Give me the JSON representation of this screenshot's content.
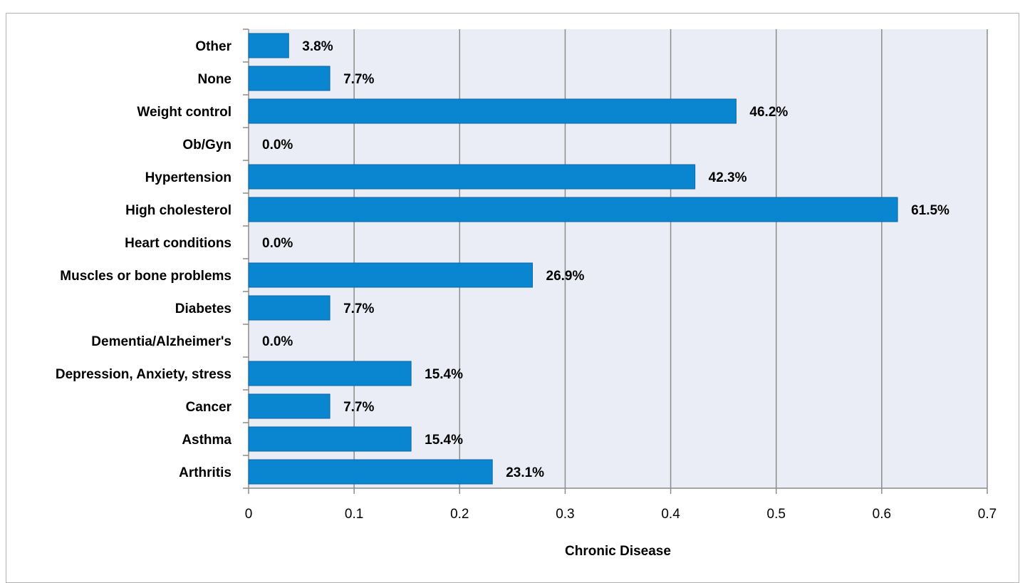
{
  "chart_data": {
    "type": "bar",
    "orientation": "horizontal",
    "categories": [
      "Arthritis",
      "Asthma",
      "Cancer",
      "Depression, Anxiety, stress",
      "Dementia/Alzheimer's",
      "Diabetes",
      "Muscles or bone problems",
      "Heart conditions",
      "High cholesterol",
      "Hypertension",
      "Ob/Gyn",
      "Weight control",
      "None",
      "Other"
    ],
    "values": [
      0.231,
      0.154,
      0.077,
      0.154,
      0.0,
      0.077,
      0.269,
      0.0,
      0.615,
      0.423,
      0.0,
      0.462,
      0.077,
      0.038
    ],
    "data_labels": [
      "23.1%",
      "15.4%",
      "7.7%",
      "15.4%",
      "0.0%",
      "7.7%",
      "26.9%",
      "0.0%",
      "61.5%",
      "42.3%",
      "0.0%",
      "46.2%",
      "7.7%",
      "3.8%"
    ],
    "xlabel": "Chronic Disease",
    "xlim": [
      0,
      0.7
    ],
    "xticks": [
      0,
      0.1,
      0.2,
      0.3,
      0.4,
      0.5,
      0.6,
      0.7
    ],
    "xtick_labels": [
      "0",
      "0.1",
      "0.2",
      "0.3",
      "0.4",
      "0.5",
      "0.6",
      "0.7"
    ],
    "grid": true,
    "colors": {
      "bar": "#0a85cf",
      "bar_border": "#0b6aa6",
      "plot_bg": "#eaedf5",
      "grid": "#8c8c8c"
    }
  }
}
